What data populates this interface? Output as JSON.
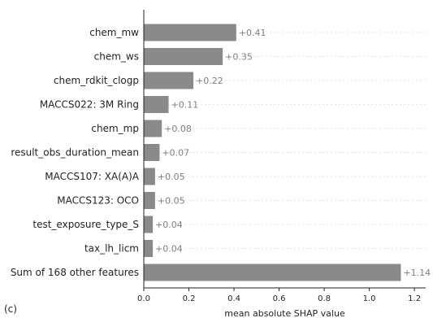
{
  "panel_label": "(c)",
  "chart_data": {
    "type": "bar",
    "orientation": "horizontal",
    "title": "",
    "xlabel": "mean absolute SHAP value",
    "ylabel": "",
    "xlim": [
      0.0,
      1.25
    ],
    "xticks": [
      0.0,
      0.2,
      0.4,
      0.6,
      0.8,
      1.0,
      1.2
    ],
    "xtick_labels": [
      "0.0",
      "0.2",
      "0.4",
      "0.6",
      "0.8",
      "1.0",
      "1.2"
    ],
    "grid": "horizontal dashed, light",
    "bar_color": "#8a8a8a",
    "value_label_color": "#7f7f7f",
    "categories": [
      "chem_mw",
      "chem_ws",
      "chem_rdkit_clogp",
      "MACCS022: 3M Ring",
      "chem_mp",
      "result_obs_duration_mean",
      "MACCS107: XA(A)A",
      "MACCS123: OCO",
      "test_exposure_type_S",
      "tax_lh_licm",
      "Sum of 168 other features"
    ],
    "values": [
      0.41,
      0.35,
      0.22,
      0.11,
      0.08,
      0.07,
      0.05,
      0.05,
      0.04,
      0.04,
      1.14
    ],
    "value_labels": [
      "+0.41",
      "+0.35",
      "+0.22",
      "+0.11",
      "+0.08",
      "+0.07",
      "+0.05",
      "+0.05",
      "+0.04",
      "+0.04",
      "+1.14"
    ]
  }
}
